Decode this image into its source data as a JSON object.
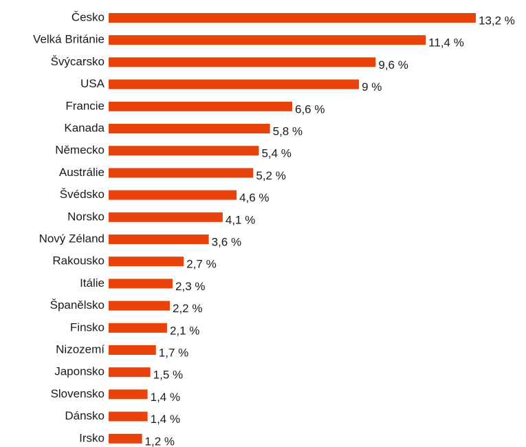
{
  "chart_data": {
    "type": "bar",
    "orientation": "horizontal",
    "color": "#e8430c",
    "categories": [
      "Česko",
      "Velká Británie",
      "Švýcarsko",
      "USA",
      "Francie",
      "Kanada",
      "Německo",
      "Austrálie",
      "Švédsko",
      "Norsko",
      "Nový Zéland",
      "Rakousko",
      "Itálie",
      "Španělsko",
      "Finsko",
      "Nizozemí",
      "Japonsko",
      "Slovensko",
      "Dánsko",
      "Irsko"
    ],
    "values": [
      13.2,
      11.4,
      9.6,
      9,
      6.6,
      5.8,
      5.4,
      5.2,
      4.6,
      4.1,
      3.6,
      2.7,
      2.3,
      2.2,
      2.1,
      1.7,
      1.5,
      1.4,
      1.4,
      1.2
    ],
    "value_labels": [
      "13,2 %",
      "11,4 %",
      "9,6 %",
      "9 %",
      "6,6 %",
      "5,8 %",
      "5,4 %",
      "5,2 %",
      "4,6 %",
      "4,1 %",
      "3,6 %",
      "2,7 %",
      "2,3 %",
      "2,2 %",
      "2,1 %",
      "1,7 %",
      "1,5 %",
      "1,4 %",
      "1,4 %",
      "1,2 %"
    ]
  }
}
